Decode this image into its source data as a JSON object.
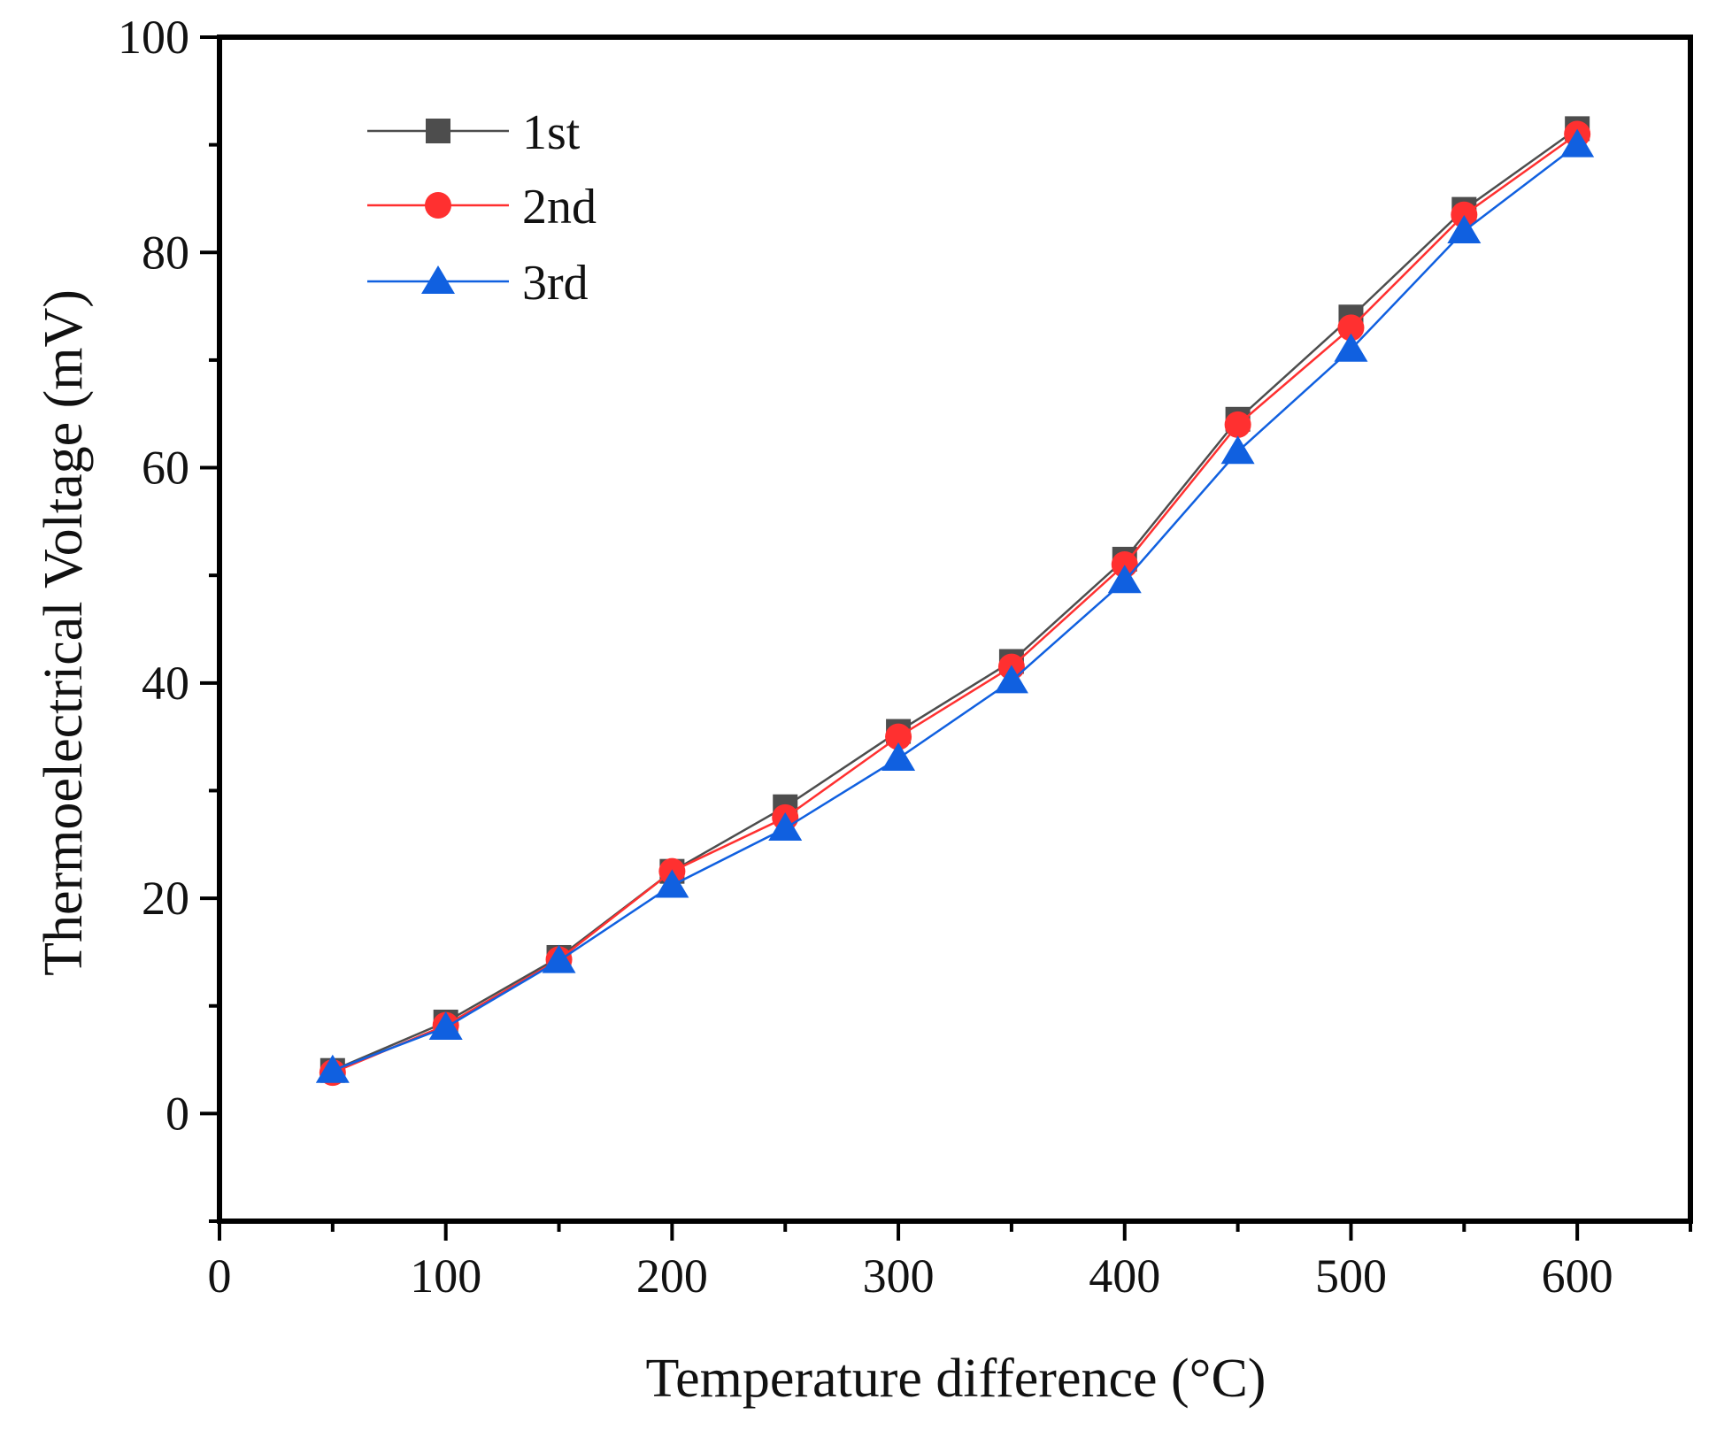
{
  "chart_data": {
    "type": "line",
    "xlabel": "Temperature difference (°C)",
    "ylabel": "Thermoelectrical Voltage (mV)",
    "xlim": [
      0,
      650
    ],
    "ylim": [
      -10,
      100
    ],
    "xticks": [
      0,
      100,
      200,
      300,
      400,
      500,
      600
    ],
    "yticks": [
      0,
      20,
      40,
      60,
      80,
      100
    ],
    "x": [
      50,
      100,
      150,
      200,
      250,
      300,
      350,
      400,
      450,
      500,
      550,
      600
    ],
    "series": [
      {
        "name": "1st",
        "color": "#4d4d4d",
        "marker": "square",
        "values": [
          4.0,
          8.5,
          14.5,
          22.5,
          28.5,
          35.5,
          42.0,
          51.5,
          64.5,
          74.0,
          84.0,
          91.5
        ]
      },
      {
        "name": "2nd",
        "color": "#ff3030",
        "marker": "circle",
        "values": [
          3.8,
          8.2,
          14.3,
          22.5,
          27.5,
          35.0,
          41.5,
          51.0,
          64.0,
          73.0,
          83.5,
          91.0
        ]
      },
      {
        "name": "3rd",
        "color": "#1060e0",
        "marker": "triangle",
        "values": [
          4.0,
          8.0,
          14.2,
          21.2,
          26.5,
          33.0,
          40.2,
          49.5,
          61.5,
          71.0,
          82.0,
          90.0
        ]
      }
    ],
    "legend_position": "top-left"
  }
}
